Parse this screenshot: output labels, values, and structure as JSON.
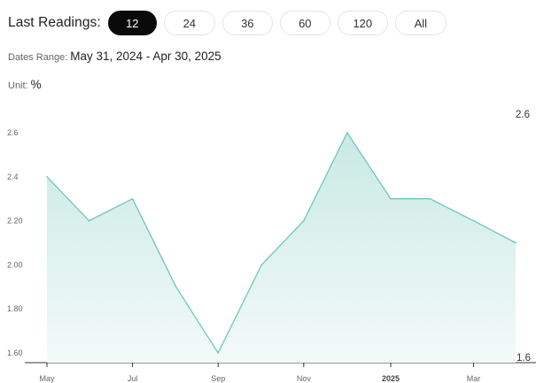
{
  "controls": {
    "label": "Last Readings:",
    "periods": [
      {
        "label": "12",
        "active": true
      },
      {
        "label": "24",
        "active": false
      },
      {
        "label": "36",
        "active": false
      },
      {
        "label": "60",
        "active": false
      },
      {
        "label": "120",
        "active": false
      },
      {
        "label": "All",
        "active": false
      }
    ]
  },
  "meta": {
    "range_label": "Dates Range:",
    "range_value": "May 31, 2024 - Apr 30, 2025",
    "unit_label": "Unit:",
    "unit_value": "%"
  },
  "colors": {
    "line": "#6cc7bd",
    "fill_top": "#c9e9e4",
    "fill_bottom": "#f3faf9",
    "active_button": "#0a0a0a"
  },
  "chart_data": {
    "type": "area",
    "x": [
      "2024-05-31",
      "2024-06-30",
      "2024-07-31",
      "2024-08-31",
      "2024-09-30",
      "2024-10-31",
      "2024-11-30",
      "2024-12-31",
      "2025-01-31",
      "2025-02-28",
      "2025-03-31",
      "2025-04-30"
    ],
    "values": [
      2.4,
      2.2,
      2.3,
      1.9,
      1.6,
      2.0,
      2.2,
      2.6,
      2.3,
      2.3,
      2.2,
      2.1
    ],
    "ylim": [
      1.6,
      2.6
    ],
    "y_ticks": [
      "1.60",
      "1.80",
      "2.00",
      "2.20",
      "2.4",
      "2.6"
    ],
    "x_ticks": [
      {
        "label": "May",
        "date": "2024-05-31",
        "bold": false
      },
      {
        "label": "Jul",
        "date": "2024-07-31",
        "bold": false
      },
      {
        "label": "Sep",
        "date": "2024-09-30",
        "bold": false
      },
      {
        "label": "Nov",
        "date": "2024-11-30",
        "bold": false
      },
      {
        "label": "2025",
        "date": "2025-01-31",
        "bold": true
      },
      {
        "label": "Mar",
        "date": "2025-03-31",
        "bold": false
      }
    ],
    "max_label": "2.6",
    "min_label": "1.6",
    "grid": false
  }
}
